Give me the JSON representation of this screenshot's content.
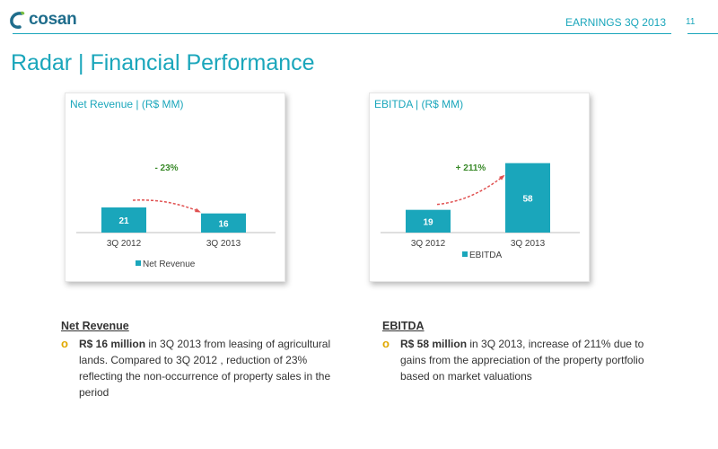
{
  "header": {
    "logo_text": "cosan",
    "title": "EARNINGS 3Q 2013",
    "page_number": "11",
    "accent_color": "#1aa6bb"
  },
  "page": {
    "title": "Radar | Financial Performance"
  },
  "charts": {
    "net_revenue": {
      "title": "Net Revenue | (R$ MM)",
      "change_label": "- 23%",
      "legend": "Net Revenue"
    },
    "ebitda": {
      "title": "EBITDA | (R$ MM)",
      "change_label": "+ 211%",
      "legend": "EBITDA"
    }
  },
  "chart_data": [
    {
      "type": "bar",
      "title": "Net Revenue | (R$ MM)",
      "categories": [
        "3Q 2012",
        "3Q 2013"
      ],
      "values": [
        21,
        16
      ],
      "series": [
        {
          "name": "Net Revenue",
          "values": [
            21,
            16
          ]
        }
      ],
      "annotation": "- 23%",
      "ylim": [
        0,
        60
      ],
      "legend": "bottom",
      "bar_color": "#1aa6bb",
      "arrow_color": "#e05050",
      "annotation_color": "#3a8a2a"
    },
    {
      "type": "bar",
      "title": "EBITDA | (R$ MM)",
      "categories": [
        "3Q 2012",
        "3Q 2013"
      ],
      "values": [
        19,
        58
      ],
      "series": [
        {
          "name": "EBITDA",
          "values": [
            19,
            58
          ]
        }
      ],
      "annotation": "+ 211%",
      "ylim": [
        0,
        60
      ],
      "legend": "bottom",
      "bar_color": "#1aa6bb",
      "arrow_color": "#e05050",
      "annotation_color": "#3a8a2a"
    }
  ],
  "sections": {
    "net_revenue": {
      "heading": "Net Revenue",
      "bullet_bold": "R$ 16 million",
      "bullet_text": " in 3Q 2013 from leasing of agricultural lands. Compared to 3Q 2012 , reduction of 23%  reflecting the non-occurrence of property sales in the period"
    },
    "ebitda": {
      "heading": "EBITDA",
      "bullet_bold": "R$ 58 million",
      "bullet_text": " in 3Q 2013, increase of 211% due to gains from the appreciation of the property portfolio based on market valuations"
    }
  },
  "icons": {
    "bullet": "circle-bullet-icon"
  }
}
